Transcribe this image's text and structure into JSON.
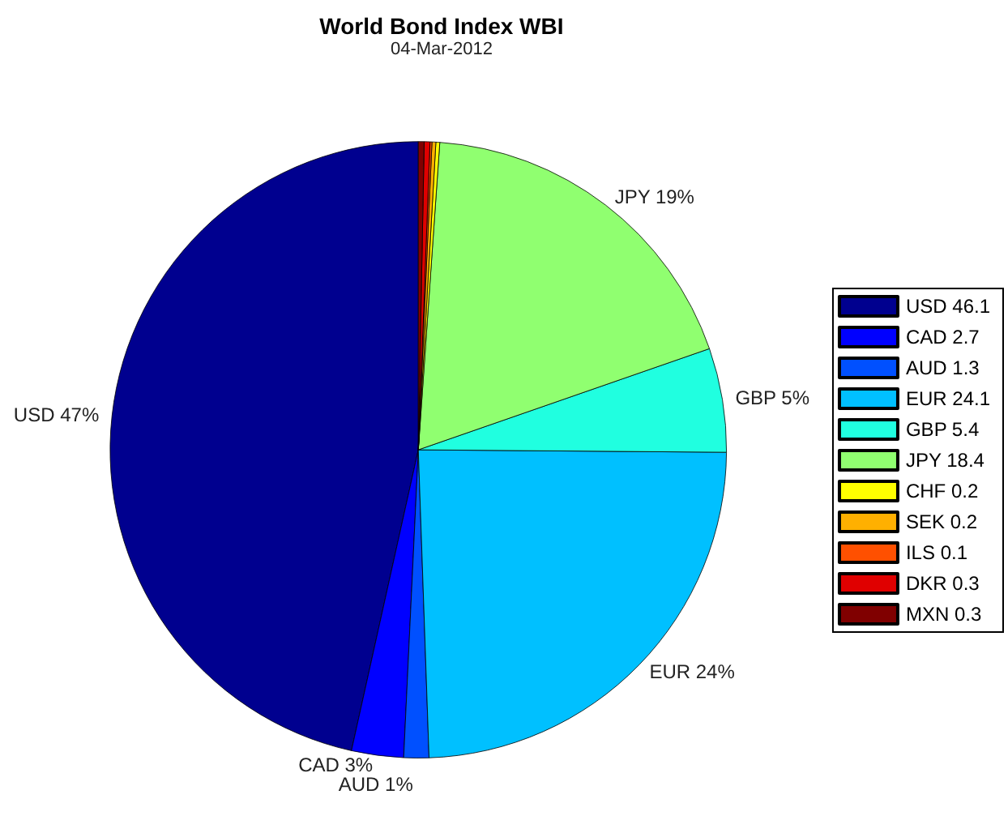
{
  "chart_data": {
    "type": "pie",
    "title": "World Bond Index WBI",
    "subtitle": "04-Mar-2012",
    "categories": [
      "USD 46.1",
      "CAD 2.7",
      "AUD 1.3",
      "EUR 24.1",
      "GBP 5.4",
      "JPY 18.4",
      "CHF 0.2",
      "SEK 0.2",
      "ILS 0.1",
      "DKR 0.3",
      "MXN 0.3"
    ],
    "values": [
      46.1,
      2.7,
      1.3,
      24.1,
      5.4,
      18.4,
      0.2,
      0.2,
      0.1,
      0.3,
      0.3
    ],
    "colors": [
      "#00008f",
      "#0000ff",
      "#0050ff",
      "#00c0ff",
      "#20ffe0",
      "#90ff70",
      "#ffff00",
      "#ffb000",
      "#ff5000",
      "#e00000",
      "#800000"
    ],
    "value_labels": [
      "USD 47%",
      "CAD 3%",
      "AUD 1%",
      "EUR 24%",
      "GBP 5%",
      "JPY 19%",
      null,
      null,
      null,
      null,
      null
    ],
    "legend": "right"
  }
}
